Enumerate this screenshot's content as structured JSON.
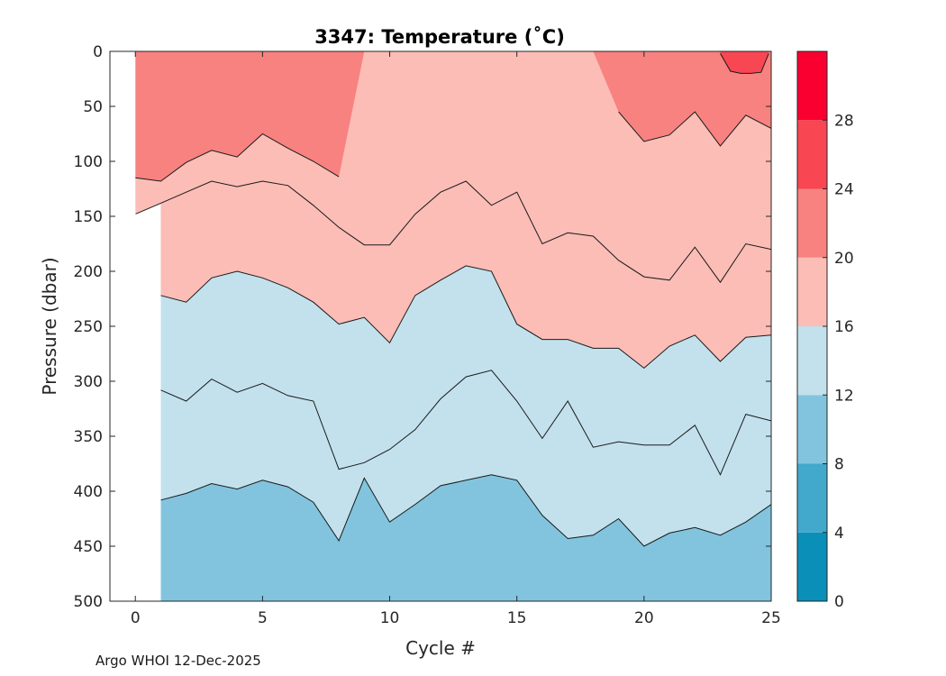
{
  "chart_data": {
    "type": "contour",
    "title": "3347:  Temperature (˚C)",
    "xlabel": "Cycle #",
    "ylabel": "Pressure (dbar)",
    "xlim": [
      -1,
      25
    ],
    "ylim": [
      500,
      0
    ],
    "xticks": [
      0,
      5,
      10,
      15,
      20,
      25
    ],
    "yticks": [
      0,
      50,
      100,
      150,
      200,
      250,
      300,
      350,
      400,
      450,
      500
    ],
    "colorbar": {
      "ticks": [
        0,
        4,
        8,
        12,
        16,
        20,
        24,
        28
      ],
      "range": [
        0,
        32
      ],
      "bands": [
        {
          "from": 0,
          "to": 4,
          "color": "#0a8fb8"
        },
        {
          "from": 4,
          "to": 8,
          "color": "#42a8cc"
        },
        {
          "from": 8,
          "to": 12,
          "color": "#82c4de"
        },
        {
          "from": 12,
          "to": 16,
          "color": "#c2e1ec"
        },
        {
          "from": 16,
          "to": 20,
          "color": "#fbbdb6"
        },
        {
          "from": 20,
          "to": 24,
          "color": "#f7827f"
        },
        {
          "from": 24,
          "to": 28,
          "color": "#f84652"
        },
        {
          "from": 28,
          "to": 32,
          "color": "#fa0030"
        }
      ]
    },
    "isotherm_depths": {
      "cycles": [
        0,
        1,
        2,
        3,
        4,
        5,
        6,
        7,
        8,
        9,
        10,
        11,
        12,
        13,
        14,
        15,
        16,
        17,
        18,
        19,
        20,
        21,
        22,
        23,
        24,
        25
      ],
      "t12": [
        null,
        408,
        402,
        393,
        398,
        390,
        396,
        410,
        445,
        388,
        428,
        412,
        395,
        390,
        385,
        390,
        422,
        443,
        440,
        425,
        450,
        438,
        433,
        440,
        428,
        412
      ],
      "t16": [
        null,
        308,
        318,
        298,
        310,
        302,
        313,
        318,
        380,
        374,
        362,
        344,
        316,
        296,
        290,
        318,
        352,
        318,
        360,
        355,
        358,
        358,
        340,
        385,
        330,
        336
      ],
      "t20": [
        null,
        222,
        228,
        206,
        200,
        206,
        215,
        228,
        248,
        242,
        265,
        222,
        208,
        195,
        200,
        248,
        262,
        262,
        270,
        270,
        288,
        268,
        258,
        282,
        260,
        258
      ],
      "t24": [
        148,
        138,
        128,
        118,
        123,
        118,
        122,
        140,
        160,
        176,
        176,
        148,
        128,
        118,
        140,
        128,
        175,
        165,
        168,
        190,
        205,
        208,
        178,
        210,
        175,
        180
      ],
      "t28": [
        115,
        118,
        101,
        90,
        96,
        75,
        88,
        100,
        114,
        0,
        0,
        0,
        0,
        0,
        0,
        0,
        0,
        0,
        0,
        55,
        82,
        76,
        55,
        86,
        58,
        70
      ],
      "t28_patch": {
        "x": [
          23.0,
          23.4,
          23.8,
          24.2,
          24.6,
          24.9
        ],
        "y": [
          2,
          18,
          20,
          20,
          19,
          2
        ]
      }
    }
  },
  "footer": {
    "text": "Argo WHOI 12-Dec-2025"
  }
}
